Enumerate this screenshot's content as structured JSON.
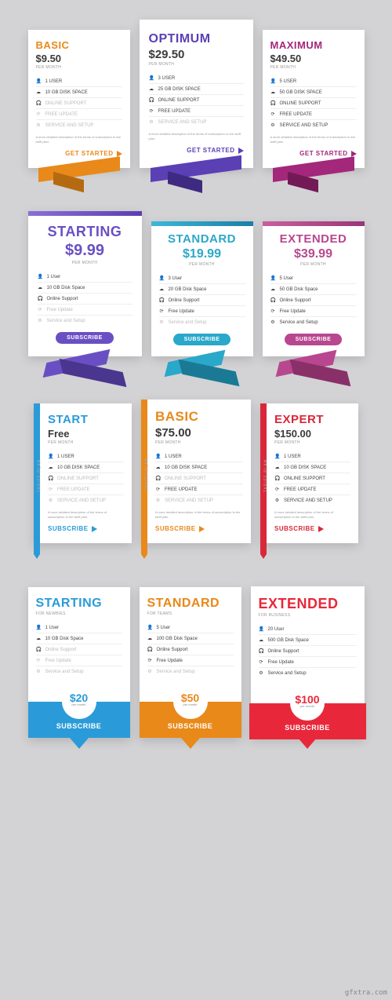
{
  "common": {
    "per_month": "per month",
    "per_month_uc": "PER MONTH",
    "get_started": "GET STARTED",
    "subscribe": "SUBSCRIBE",
    "tariff_plan": "TARIFF PLAN",
    "desc": "A more detailed description of the terms of subscription to the tariff plan.",
    "icons": {
      "user": "👤",
      "disk": "☁",
      "support": "🎧",
      "update": "⟳",
      "service": "⚙"
    }
  },
  "row1": {
    "cards": [
      {
        "name": "BASIC",
        "price": "$9.50",
        "color": "#e8891a",
        "ribbon_dark": "#b56a12",
        "features": [
          [
            "user",
            "1 USER",
            false
          ],
          [
            "disk",
            "10 GB DISK SPACE",
            false
          ],
          [
            "support",
            "ONLINE SUPPORT",
            true
          ],
          [
            "update",
            "FREE UPDATE",
            true
          ],
          [
            "service",
            "SERVICE AND SETUP",
            true
          ]
        ]
      },
      {
        "name": "OPTIMUM",
        "price": "$29.50",
        "color": "#5b3fb5",
        "ribbon_dark": "#3f2a82",
        "features": [
          [
            "user",
            "3 USER",
            false
          ],
          [
            "disk",
            "25 GB DISK SPACE",
            false
          ],
          [
            "support",
            "ONLINE SUPPORT",
            false
          ],
          [
            "update",
            "FREE UPDATE",
            false
          ],
          [
            "service",
            "SERVICE AND SETUP",
            true
          ]
        ]
      },
      {
        "name": "MAXIMUM",
        "price": "$49.50",
        "color": "#a3277a",
        "ribbon_dark": "#731a56",
        "features": [
          [
            "user",
            "5 USER",
            false
          ],
          [
            "disk",
            "50 GB DISK SPACE",
            false
          ],
          [
            "support",
            "ONLINE SUPPORT",
            false
          ],
          [
            "update",
            "FREE UPDATE",
            false
          ],
          [
            "service",
            "SERVICE AND SETUP",
            false
          ]
        ]
      }
    ]
  },
  "row2": {
    "cards": [
      {
        "name": "STARTING",
        "price": "$9.99",
        "color": "#6a4fc4",
        "grad": "linear-gradient(90deg,#8a6fd8,#5a3fb0)",
        "ribbon_dark": "#4a358f",
        "features": [
          [
            "user",
            "1 User",
            false
          ],
          [
            "disk",
            "10 GB Disk Space",
            false
          ],
          [
            "support",
            "Online Support",
            false
          ],
          [
            "update",
            "Free Update",
            true
          ],
          [
            "service",
            "Service and Setup",
            true
          ]
        ]
      },
      {
        "name": "STANDARD",
        "price": "$19.99",
        "color": "#2aa8c9",
        "grad": "linear-gradient(90deg,#3bb8d8,#1a7fa8)",
        "ribbon_dark": "#1a7a95",
        "features": [
          [
            "user",
            "3 User",
            false
          ],
          [
            "disk",
            "20 GB Disk Space",
            false
          ],
          [
            "support",
            "Online Support",
            false
          ],
          [
            "update",
            "Free Update",
            false
          ],
          [
            "service",
            "Service and Setup",
            true
          ]
        ]
      },
      {
        "name": "EXTENDED",
        "price": "$39.99",
        "color": "#b8478f",
        "grad": "linear-gradient(90deg,#c85fa0,#9a3578)",
        "ribbon_dark": "#8a3068",
        "features": [
          [
            "user",
            "5 User",
            false
          ],
          [
            "disk",
            "50 GB Disk Space",
            false
          ],
          [
            "support",
            "Online Support",
            false
          ],
          [
            "update",
            "Free Update",
            false
          ],
          [
            "service",
            "Service and Setup",
            false
          ]
        ]
      }
    ]
  },
  "row3": {
    "cards": [
      {
        "name": "START",
        "price": "Free",
        "color": "#2a9bd8",
        "features": [
          [
            "user",
            "1 USER",
            false
          ],
          [
            "disk",
            "10 GB DISK SPACE",
            false
          ],
          [
            "support",
            "ONLINE SUPPORT",
            true
          ],
          [
            "update",
            "FREE UPDATE",
            true
          ],
          [
            "service",
            "SERVICE AND SETUP",
            true
          ]
        ]
      },
      {
        "name": "BASIC",
        "price": "$75.00",
        "color": "#e8891a",
        "features": [
          [
            "user",
            "1 USER",
            false
          ],
          [
            "disk",
            "10 GB DISK SPACE",
            false
          ],
          [
            "support",
            "ONLINE SUPPORT",
            true
          ],
          [
            "update",
            "FREE UPDATE",
            false
          ],
          [
            "service",
            "SERVICE AND SETUP",
            true
          ]
        ]
      },
      {
        "name": "EXPERT",
        "price": "$150.00",
        "color": "#d8283a",
        "features": [
          [
            "user",
            "1 USER",
            false
          ],
          [
            "disk",
            "10 GB DISK SPACE",
            false
          ],
          [
            "support",
            "ONLINE SUPPORT",
            false
          ],
          [
            "update",
            "FREE UPDATE",
            false
          ],
          [
            "service",
            "SERVICE AND SETUP",
            false
          ]
        ]
      }
    ]
  },
  "row4": {
    "cards": [
      {
        "name": "STARTING",
        "subtitle": "for newbies",
        "price": "$20",
        "color": "#2a9bd8",
        "features": [
          [
            "user",
            "1 User",
            false
          ],
          [
            "disk",
            "10 GB Disk Space",
            false
          ],
          [
            "support",
            "Online Support",
            true
          ],
          [
            "update",
            "Free Update",
            true
          ],
          [
            "service",
            "Service and Setup",
            true
          ]
        ]
      },
      {
        "name": "STANDARD",
        "subtitle": "for teams",
        "price": "$50",
        "color": "#e8891a",
        "features": [
          [
            "user",
            "5 User",
            false
          ],
          [
            "disk",
            "100 GB Disk Space",
            false
          ],
          [
            "support",
            "Online Support",
            false
          ],
          [
            "update",
            "Free Update",
            false
          ],
          [
            "service",
            "Service and Setup",
            true
          ]
        ]
      },
      {
        "name": "EXTENDED",
        "subtitle": "for business",
        "price": "$100",
        "color": "#e8283a",
        "features": [
          [
            "user",
            "20 User",
            false
          ],
          [
            "disk",
            "500 GB Disk Space",
            false
          ],
          [
            "support",
            "Online Support",
            false
          ],
          [
            "update",
            "Free Update",
            false
          ],
          [
            "service",
            "Service and Setup",
            false
          ]
        ]
      }
    ]
  },
  "watermark": "gfxtra.com"
}
